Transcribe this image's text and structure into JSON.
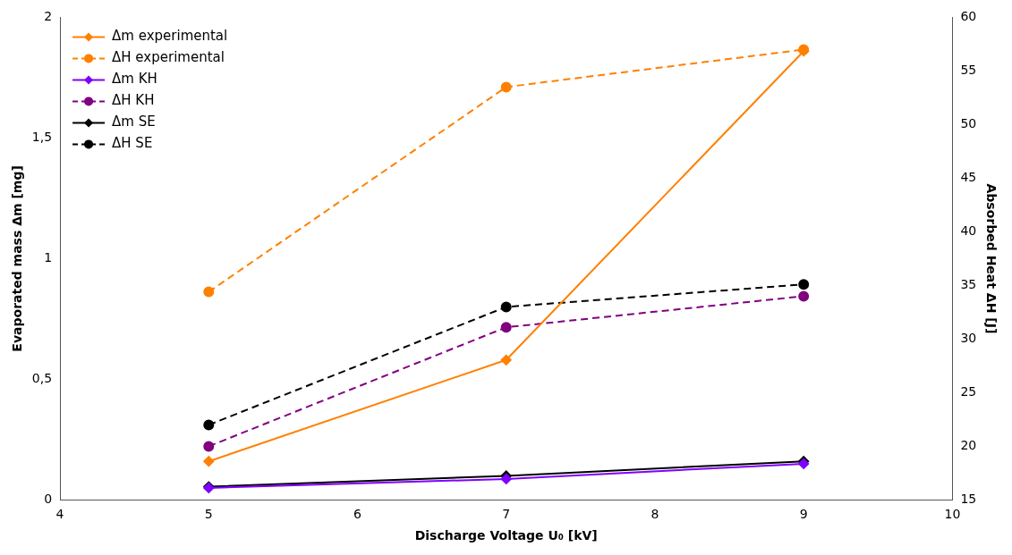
{
  "chart_data": {
    "type": "line",
    "xlabel": "Discharge Voltage U₀ [kV]",
    "ylabel": "Evaporated mass Δm [mg]",
    "y2label": "Absorbed Heat ΔH [J]",
    "xlim": [
      4,
      10
    ],
    "xticks": [
      4,
      5,
      6,
      7,
      8,
      9,
      10
    ],
    "ylim": [
      0,
      2
    ],
    "yticks": [
      0,
      {
        "value": 0.5,
        "label": "0,5"
      },
      1,
      {
        "value": 1.5,
        "label": "1,5"
      },
      2
    ],
    "y2lim": [
      15,
      60
    ],
    "y2ticks": [
      15,
      20,
      25,
      30,
      35,
      40,
      45,
      50,
      55,
      60
    ],
    "grid": false,
    "legend": "top left",
    "series": [
      {
        "name": "Δm experimental",
        "color": "#ff8000",
        "x": [
          5,
          7,
          9
        ],
        "values": [
          0.16,
          0.58,
          1.86
        ],
        "marker": "diamond",
        "line_style": "solid"
      },
      {
        "name": "ΔH experimental",
        "color": "#ff8000",
        "x": [
          5,
          7,
          9
        ],
        "values": [
          34.4,
          53.5,
          57
        ],
        "axis": "y2",
        "marker": "circle",
        "line_style": "dashed"
      },
      {
        "name": "Δm KH",
        "color": "#8000ff",
        "x": [
          5,
          7,
          9
        ],
        "values": [
          0.05,
          0.087,
          0.15
        ],
        "marker": "diamond",
        "line_style": "solid"
      },
      {
        "name": "ΔH KH",
        "color": "#800080",
        "x": [
          5,
          7,
          9
        ],
        "values": [
          20,
          31.1,
          34
        ],
        "axis": "y2",
        "marker": "circle",
        "line_style": "dashed"
      },
      {
        "name": "Δm SE",
        "color": "#000000",
        "x": [
          5,
          7,
          9
        ],
        "values": [
          0.055,
          0.1,
          0.16
        ],
        "marker": "diamond",
        "line_style": "solid"
      },
      {
        "name": "ΔH SE",
        "color": "#000000",
        "x": [
          5,
          7,
          9
        ],
        "values": [
          22,
          33,
          35.1
        ],
        "axis": "y2",
        "marker": "circle",
        "line_style": "dashed"
      }
    ]
  }
}
